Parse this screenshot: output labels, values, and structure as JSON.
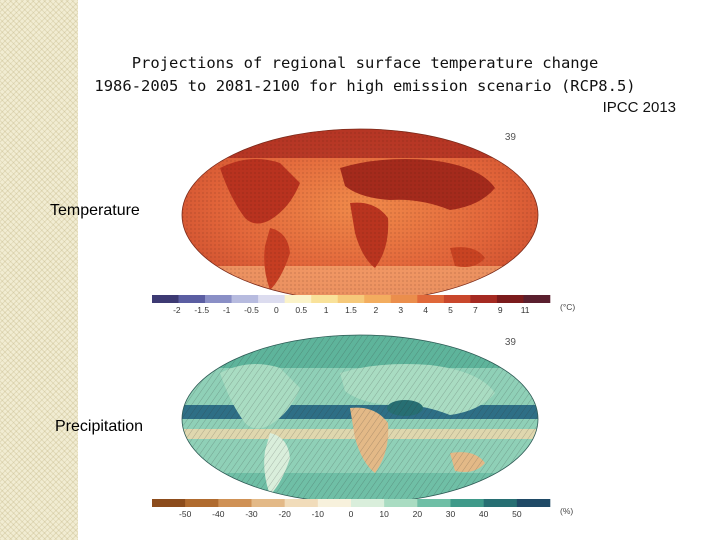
{
  "title": {
    "line1": "Projections of  regional surface temperature change",
    "line2": "1986-2005 to 2081-2100 for high emission scenario (RCP8.5)"
  },
  "credit": "IPCC 2013",
  "panels": [
    {
      "row_label": "Temperature",
      "panel_number": "39",
      "unit": "(°C)",
      "colorbar": {
        "ticks": [
          "-2",
          "-1.5",
          "-1",
          "-0.5",
          "0",
          "0.5",
          "1",
          "1.5",
          "2",
          "3",
          "4",
          "5",
          "7",
          "9",
          "11"
        ],
        "colors": [
          "#3d3a73",
          "#5b5ea2",
          "#8a8fc6",
          "#b7bbdf",
          "#dcdcef",
          "#fbf3c9",
          "#f9e29a",
          "#f6c97a",
          "#f3ad5f",
          "#eb8e4c",
          "#e0683a",
          "#c9472c",
          "#a52a22",
          "#7b1b1c",
          "#5a1f2e"
        ]
      }
    },
    {
      "row_label": "Precipitation",
      "panel_number": "39",
      "unit": "(%)",
      "colorbar": {
        "ticks": [
          "-50",
          "-40",
          "-30",
          "-20",
          "-10",
          "0",
          "10",
          "20",
          "30",
          "40",
          "50"
        ],
        "colors": [
          "#8c4c1c",
          "#b06b2f",
          "#cf9155",
          "#e3b987",
          "#f1dcba",
          "#f7f1dc",
          "#d9eedb",
          "#a9dcc2",
          "#6fbfa6",
          "#3f9a8a",
          "#276f73",
          "#1f4a66"
        ]
      }
    }
  ]
}
